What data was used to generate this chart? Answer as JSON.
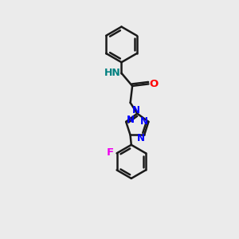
{
  "bg_color": "#ebebeb",
  "bond_color": "#1a1a1a",
  "N_color": "#0000ff",
  "O_color": "#ff0000",
  "F_color": "#ee00ee",
  "NH_color": "#008080",
  "lw": 1.8,
  "figsize": [
    3.0,
    3.0
  ],
  "dpi": 100,
  "atoms": {
    "N_label": "N",
    "O_label": "O",
    "F_label": "F",
    "NH_label": "HN"
  }
}
